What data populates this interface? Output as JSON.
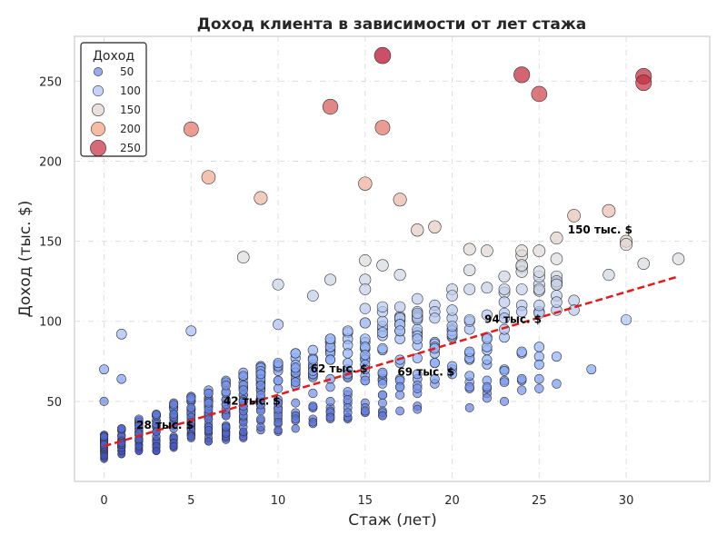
{
  "chart_data": {
    "type": "scatter",
    "title": "Доход клиента в зависимости от лет стажа",
    "xlabel": "Стаж (лет)",
    "ylabel": "Доход (тыс. $)",
    "xlim": [
      -1.7,
      34.8
    ],
    "ylim": [
      0,
      278
    ],
    "xticks": [
      0,
      5,
      10,
      15,
      20,
      25,
      30
    ],
    "yticks": [
      50,
      100,
      150,
      200,
      250
    ],
    "grid": true,
    "color_encoding": "Доход",
    "colormap": "coolwarm",
    "color_range": [
      13,
      267
    ],
    "legend": {
      "title": "Доход",
      "placement": "top-left",
      "entries": [
        "50",
        "100",
        "150",
        "200",
        "250"
      ],
      "values": [
        50,
        100,
        150,
        200,
        250
      ]
    },
    "outliers": [
      {
        "x": 16,
        "y": 266
      },
      {
        "x": 24,
        "y": 254
      },
      {
        "x": 31,
        "y": 253
      },
      {
        "x": 31,
        "y": 249
      },
      {
        "x": 13,
        "y": 234
      },
      {
        "x": 25,
        "y": 242
      },
      {
        "x": 5,
        "y": 220
      },
      {
        "x": 16,
        "y": 221
      },
      {
        "x": 6,
        "y": 190
      },
      {
        "x": 15,
        "y": 186
      },
      {
        "x": 9,
        "y": 177
      },
      {
        "x": 17,
        "y": 176
      },
      {
        "x": 29,
        "y": 169
      },
      {
        "x": 27,
        "y": 166
      },
      {
        "x": 19,
        "y": 159
      },
      {
        "x": 18,
        "y": 157
      },
      {
        "x": 30,
        "y": 150
      },
      {
        "x": 30,
        "y": 148
      },
      {
        "x": 21,
        "y": 145
      },
      {
        "x": 22,
        "y": 144
      },
      {
        "x": 8,
        "y": 140
      },
      {
        "x": 33,
        "y": 139
      },
      {
        "x": 15,
        "y": 138
      },
      {
        "x": 31,
        "y": 136
      },
      {
        "x": 16,
        "y": 135
      },
      {
        "x": 21,
        "y": 132
      },
      {
        "x": 17,
        "y": 129
      },
      {
        "x": 29,
        "y": 129
      },
      {
        "x": 13,
        "y": 126
      },
      {
        "x": 15,
        "y": 126
      },
      {
        "x": 10,
        "y": 123
      },
      {
        "x": 15,
        "y": 120
      },
      {
        "x": 25,
        "y": 120
      },
      {
        "x": 12,
        "y": 116
      },
      {
        "x": 20,
        "y": 116
      },
      {
        "x": 27,
        "y": 113
      },
      {
        "x": 18,
        "y": 114
      },
      {
        "x": 16,
        "y": 109
      },
      {
        "x": 15,
        "y": 108
      },
      {
        "x": 27,
        "y": 107
      },
      {
        "x": 30,
        "y": 101
      },
      {
        "x": 10,
        "y": 98
      },
      {
        "x": 1,
        "y": 92
      },
      {
        "x": 5,
        "y": 94
      },
      {
        "x": 28,
        "y": 70
      },
      {
        "x": 1,
        "y": 64
      },
      {
        "x": 0,
        "y": 70
      },
      {
        "x": 0,
        "y": 50
      },
      {
        "x": 24,
        "y": 64
      },
      {
        "x": 25,
        "y": 64
      },
      {
        "x": 23,
        "y": 50
      },
      {
        "x": 22,
        "y": 52
      },
      {
        "x": 21,
        "y": 46
      }
    ],
    "bulk_trend": {
      "intercept": 22,
      "slope": 3.2,
      "spread_base": 6,
      "spread_per_year": 1.2,
      "x_min": 0,
      "x_max": 26
    },
    "trend_line": {
      "x": [
        0,
        33
      ],
      "y": [
        22,
        128
      ],
      "color": "#e41a1c",
      "style": "dashed"
    },
    "annotations": [
      {
        "text": "28 тыс. $",
        "x": 3.5,
        "y": 33
      },
      {
        "text": "42 тыс. $",
        "x": 8.5,
        "y": 48
      },
      {
        "text": "62 тыс. $",
        "x": 13.5,
        "y": 68
      },
      {
        "text": "69 тыс. $",
        "x": 18.5,
        "y": 66
      },
      {
        "text": "94 тыс. $",
        "x": 23.5,
        "y": 99
      },
      {
        "text": "150 тыс. $",
        "x": 28.5,
        "y": 155
      }
    ]
  }
}
